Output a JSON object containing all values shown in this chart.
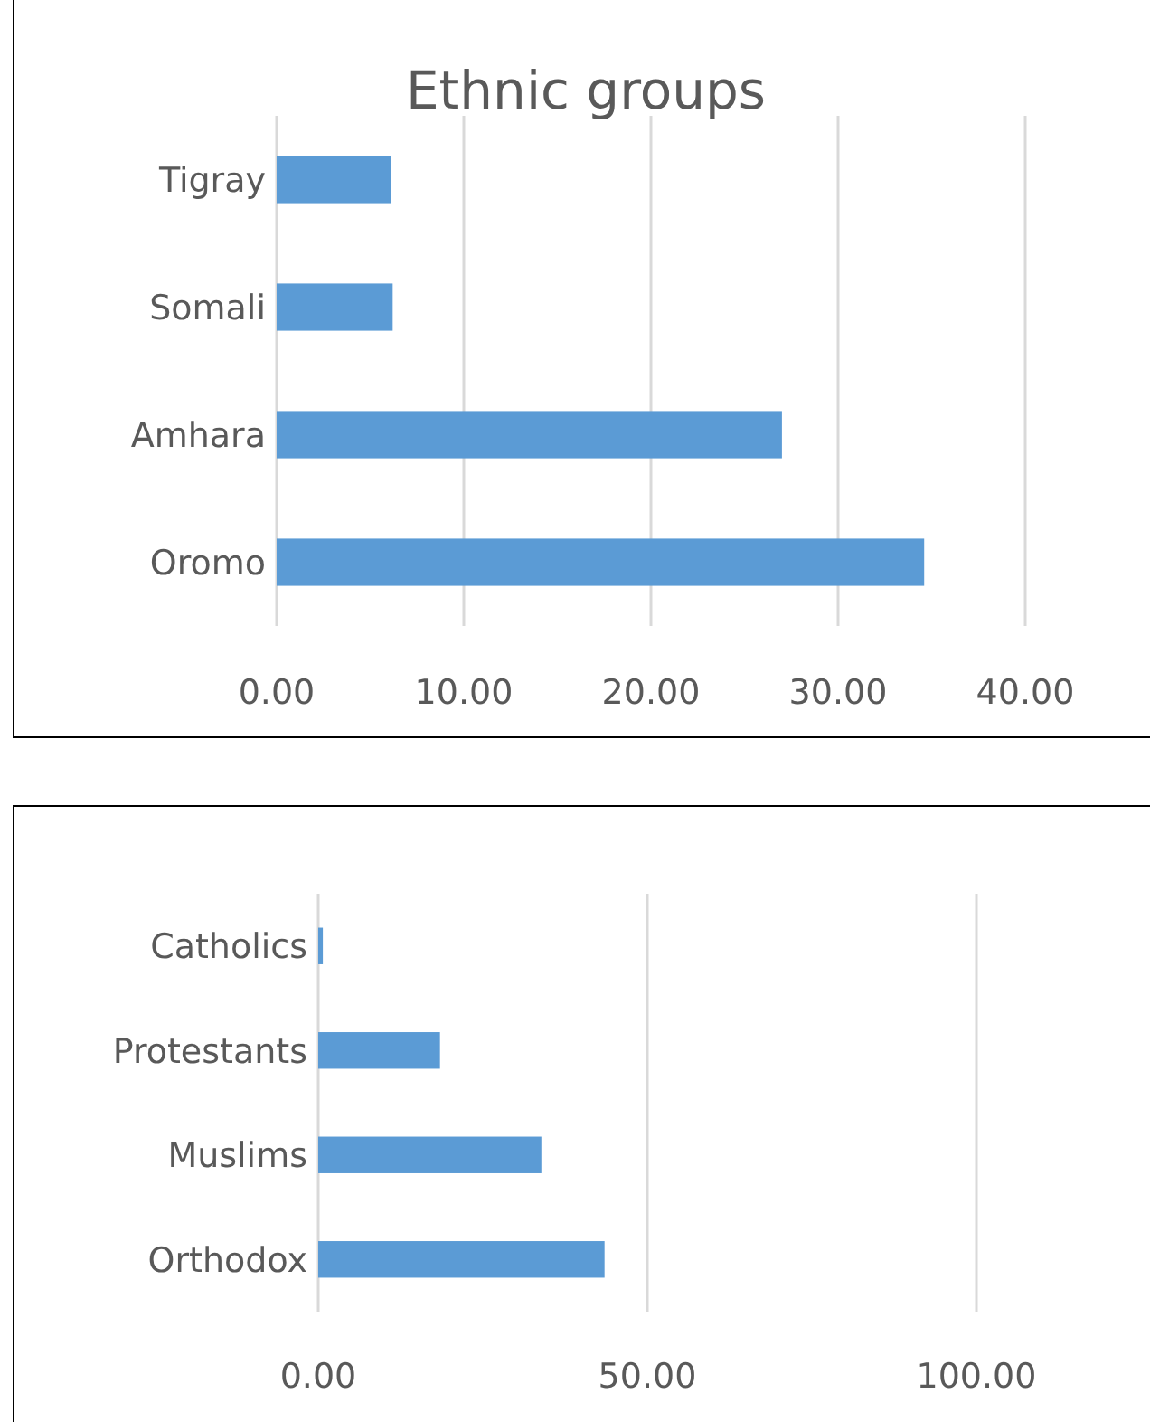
{
  "chart_data": [
    {
      "type": "bar",
      "orientation": "horizontal",
      "title": "Ethnic groups",
      "categories": [
        "Tigray",
        "Somali",
        "Amhara",
        "Oromo"
      ],
      "values": [
        6.1,
        6.2,
        27.0,
        34.6
      ],
      "color": "#5b9bd5",
      "xlim": [
        0,
        40
      ],
      "xticks": [
        {
          "value": 0,
          "label": "0.00"
        },
        {
          "value": 10,
          "label": "10.00"
        },
        {
          "value": 20,
          "label": "20.00"
        },
        {
          "value": 30,
          "label": "30.00"
        },
        {
          "value": 40,
          "label": "40.00"
        }
      ],
      "grid": "x"
    },
    {
      "type": "bar",
      "orientation": "horizontal",
      "categories": [
        "Catholics",
        "Protestants",
        "Muslims",
        "Orthodox"
      ],
      "values": [
        0.7,
        18.5,
        33.9,
        43.5
      ],
      "color": "#5b9bd5",
      "xlim": [
        0,
        100
      ],
      "xticks": [
        {
          "value": 0,
          "label": "0.00"
        },
        {
          "value": 50,
          "label": "50.00"
        },
        {
          "value": 100,
          "label": "100.00"
        }
      ],
      "grid": "x"
    }
  ]
}
